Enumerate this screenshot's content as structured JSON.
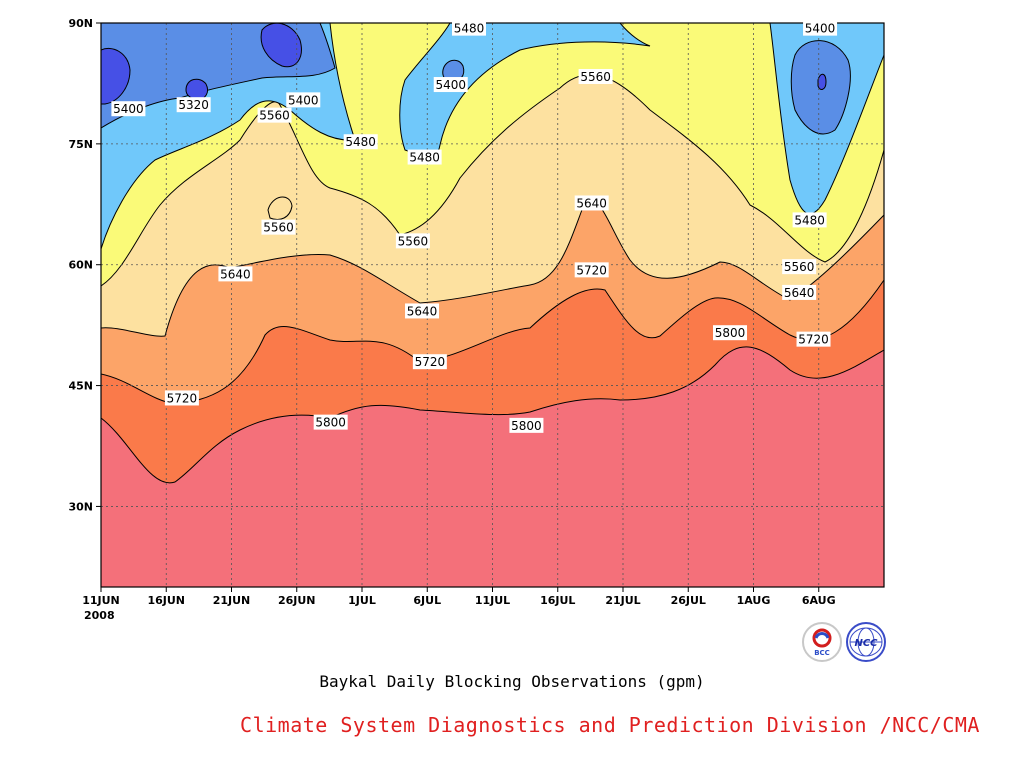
{
  "chart_data": {
    "type": "contour",
    "caption": "Baykal Daily Blocking Observations (gpm)",
    "credit": "Climate System Diagnostics and Prediction Division /NCC/CMA",
    "x_tick_labels": [
      "11JUN",
      "16JUN",
      "21JUN",
      "26JUN",
      "1JUL",
      "6JUL",
      "11JUL",
      "16JUL",
      "21JUL",
      "26JUL",
      "1AUG",
      "6AUG"
    ],
    "x_year_label": "2008",
    "y_tick_labels": [
      "30N",
      "45N",
      "60N",
      "75N",
      "90N"
    ],
    "ylim_deg": [
      20,
      90
    ],
    "xlim_days_from_11JUN": [
      0,
      60
    ],
    "fill_colors": {
      "below_5320": "#4650e6",
      "5320_5400": "#5a8ee6",
      "5400_5480": "#70c8fa",
      "5480_5560": "#fafa78",
      "5560_5640": "#fde1a0",
      "5640_5720": "#fca468",
      "5720_5800": "#fa7a4a",
      "above_5800": "#f4707a"
    },
    "contour_labels": [
      {
        "text": "5480",
        "day": 28.2,
        "lat": 89.3
      },
      {
        "text": "5400",
        "day": 55.1,
        "lat": 89.3
      },
      {
        "text": "5560",
        "day": 37.9,
        "lat": 83.3
      },
      {
        "text": "5400",
        "day": 26.8,
        "lat": 82.3
      },
      {
        "text": "5400",
        "day": 2.1,
        "lat": 79.3
      },
      {
        "text": "5320",
        "day": 7.1,
        "lat": 79.8
      },
      {
        "text": "5400",
        "day": 15.5,
        "lat": 80.4
      },
      {
        "text": "5560",
        "day": 13.3,
        "lat": 78.5
      },
      {
        "text": "5480",
        "day": 19.9,
        "lat": 75.2
      },
      {
        "text": "5480",
        "day": 24.8,
        "lat": 73.3
      },
      {
        "text": "5560",
        "day": 13.6,
        "lat": 64.6
      },
      {
        "text": "5560",
        "day": 23.9,
        "lat": 62.9
      },
      {
        "text": "5640",
        "day": 37.6,
        "lat": 67.6
      },
      {
        "text": "5480",
        "day": 54.3,
        "lat": 65.5
      },
      {
        "text": "5560",
        "day": 53.5,
        "lat": 59.7
      },
      {
        "text": "5640",
        "day": 10.3,
        "lat": 58.8
      },
      {
        "text": "5720",
        "day": 37.6,
        "lat": 59.3
      },
      {
        "text": "5640",
        "day": 53.5,
        "lat": 56.5
      },
      {
        "text": "5640",
        "day": 24.6,
        "lat": 54.2
      },
      {
        "text": "5800",
        "day": 48.2,
        "lat": 51.5
      },
      {
        "text": "5720",
        "day": 54.6,
        "lat": 50.7
      },
      {
        "text": "5720",
        "day": 25.2,
        "lat": 47.9
      },
      {
        "text": "5720",
        "day": 6.2,
        "lat": 43.4
      },
      {
        "text": "5800",
        "day": 17.6,
        "lat": 40.4
      },
      {
        "text": "5800",
        "day": 32.6,
        "lat": 40.0
      }
    ]
  }
}
